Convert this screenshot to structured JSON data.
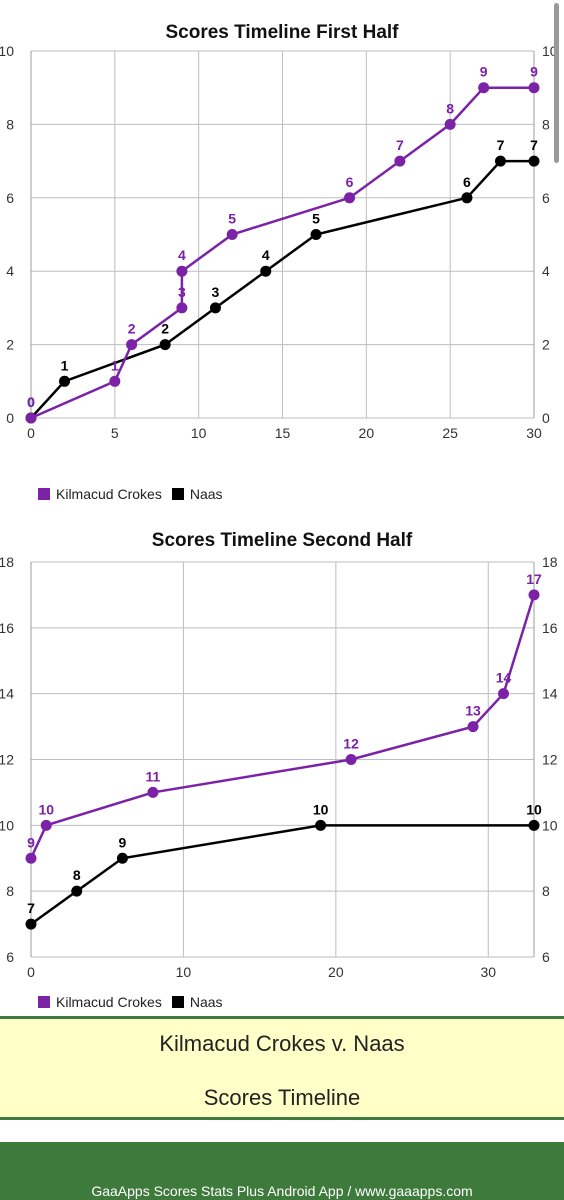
{
  "colors": {
    "kilmacud": "#7b22a6",
    "naas": "#000000",
    "footer_bg": "#ffffc8",
    "footer_green": "#3e7a3c"
  },
  "chart_data": [
    {
      "type": "line",
      "title": "Scores Timeline First Half",
      "xlim": [
        0,
        30
      ],
      "ylim": [
        0,
        10
      ],
      "xticks": [
        0,
        5,
        10,
        15,
        20,
        25,
        30
      ],
      "yticks": [
        0,
        2,
        4,
        6,
        8,
        10
      ],
      "grid": true,
      "legend_position": "bottom-left",
      "series": [
        {
          "name": "Kilmacud Crokes",
          "color": "#7b22a6",
          "points": [
            [
              0,
              0
            ],
            [
              5,
              1
            ],
            [
              6,
              2
            ],
            [
              9,
              3
            ],
            [
              9,
              4
            ],
            [
              12,
              5
            ],
            [
              19,
              6
            ],
            [
              22,
              7
            ],
            [
              25,
              8
            ],
            [
              27,
              9
            ],
            [
              30,
              9
            ]
          ]
        },
        {
          "name": "Naas",
          "color": "#000000",
          "points": [
            [
              0,
              0
            ],
            [
              2,
              1
            ],
            [
              8,
              2
            ],
            [
              11,
              3
            ],
            [
              14,
              4
            ],
            [
              17,
              5
            ],
            [
              26,
              6
            ],
            [
              28,
              7
            ],
            [
              30,
              7
            ]
          ]
        }
      ]
    },
    {
      "type": "line",
      "title": "Scores Timeline Second Half",
      "xlim": [
        0,
        33
      ],
      "ylim": [
        6,
        18
      ],
      "xticks": [
        0,
        10,
        20,
        30
      ],
      "yticks": [
        6,
        8,
        10,
        12,
        14,
        16,
        18
      ],
      "grid": true,
      "legend_position": "bottom-left",
      "series": [
        {
          "name": "Kilmacud Crokes",
          "color": "#7b22a6",
          "points": [
            [
              0,
              9
            ],
            [
              1,
              10
            ],
            [
              8,
              11
            ],
            [
              21,
              12
            ],
            [
              29,
              13
            ],
            [
              31,
              14
            ],
            [
              33,
              17
            ]
          ]
        },
        {
          "name": "Naas",
          "color": "#000000",
          "points": [
            [
              0,
              7
            ],
            [
              3,
              8
            ],
            [
              6,
              9
            ],
            [
              19,
              10
            ],
            [
              33,
              10
            ]
          ]
        }
      ]
    }
  ],
  "footer": {
    "line1": "Kilmacud Crokes v. Naas",
    "line2": "Scores Timeline",
    "credit": "GaaApps Scores Stats Plus Android App / www.gaaapps.com"
  }
}
